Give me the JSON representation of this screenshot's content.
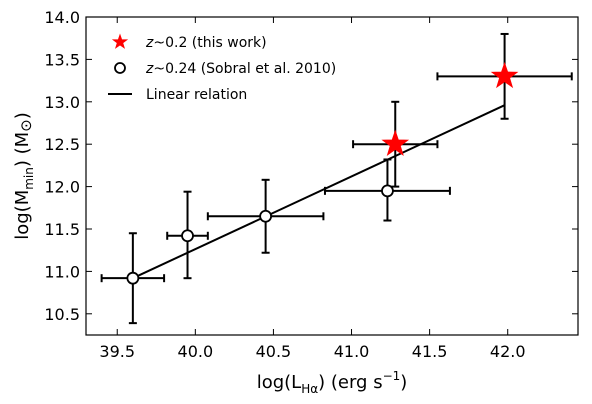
{
  "chart_data": {
    "type": "scatter",
    "xlabel": {
      "pre": "log(L",
      "sub": "Hα",
      "post": ")  (erg s",
      "sup": "−1",
      "close": ")"
    },
    "ylabel": {
      "pre": "log(M",
      "sub": "min",
      "post": ")  (M",
      "sun": "⊙",
      "close": ")"
    },
    "xlim": [
      39.3,
      42.45
    ],
    "ylim": [
      10.25,
      14.0
    ],
    "xticks": [
      "39.5",
      "40.0",
      "40.5",
      "41.0",
      "41.5",
      "42.0"
    ],
    "yticks": [
      "10.5",
      "11.0",
      "11.5",
      "12.0",
      "12.5",
      "13.0",
      "13.5",
      "14.0"
    ],
    "legend": {
      "placement": "top-left",
      "items": [
        {
          "marker": "star",
          "italic": "z",
          "text": "~0.2 (this work)"
        },
        {
          "marker": "circle",
          "italic": "z",
          "text": "~0.24 (Sobral et al. 2010)"
        },
        {
          "marker": "line",
          "italic": "",
          "text": "Linear relation"
        }
      ]
    },
    "series": [
      {
        "name": "z~0.24 (Sobral et al. 2010)",
        "marker": "open-circle",
        "color": "#000000",
        "points": [
          {
            "x": 39.6,
            "y": 10.92,
            "xerr_lo": 0.2,
            "xerr_hi": 0.2,
            "yerr_lo": 0.53,
            "yerr_hi": 0.53
          },
          {
            "x": 39.95,
            "y": 11.42,
            "xerr_lo": 0.13,
            "xerr_hi": 0.13,
            "yerr_lo": 0.5,
            "yerr_hi": 0.52
          },
          {
            "x": 40.45,
            "y": 11.65,
            "xerr_lo": 0.37,
            "xerr_hi": 0.37,
            "yerr_lo": 0.43,
            "yerr_hi": 0.43
          },
          {
            "x": 41.23,
            "y": 11.95,
            "xerr_lo": 0.4,
            "xerr_hi": 0.4,
            "yerr_lo": 0.35,
            "yerr_hi": 0.37
          }
        ]
      },
      {
        "name": "z~0.2 (this work)",
        "marker": "star",
        "color": "#ff0000",
        "points": [
          {
            "x": 41.28,
            "y": 12.5,
            "xerr_lo": 0.27,
            "xerr_hi": 0.27,
            "yerr_lo": 0.5,
            "yerr_hi": 0.5
          },
          {
            "x": 41.98,
            "y": 13.3,
            "xerr_lo": 0.43,
            "xerr_hi": 0.43,
            "yerr_lo": 0.5,
            "yerr_hi": 0.5
          }
        ]
      }
    ],
    "line": {
      "name": "Linear relation",
      "color": "#000000",
      "x": [
        39.6,
        41.98
      ],
      "y": [
        10.92,
        12.96
      ]
    }
  }
}
